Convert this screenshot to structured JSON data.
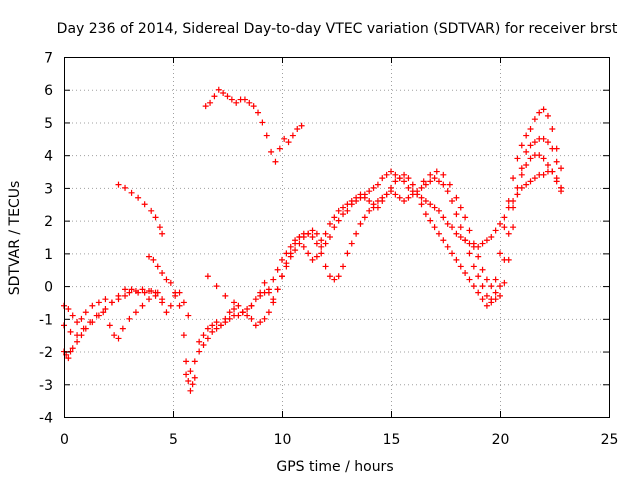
{
  "chart_data": {
    "type": "scatter",
    "title": "Day 236 of 2014, Sidereal Day-to-day VTEC variation (SDTVAR) for receiver brst",
    "xlabel": "GPS time / hours",
    "ylabel": "SDTVAR / TECUs",
    "xlim": [
      0,
      25
    ],
    "ylim": [
      -4,
      7
    ],
    "xticks": [
      0,
      5,
      10,
      15,
      20,
      25
    ],
    "yticks": [
      -4,
      -3,
      -2,
      -1,
      0,
      1,
      2,
      3,
      4,
      5,
      6,
      7
    ],
    "grid": true,
    "legend": "none",
    "marker": "plus",
    "color": "#ff0000",
    "series": [
      {
        "x": [
          0.0,
          0.1,
          0.2,
          0.3,
          0.4,
          0.6,
          0.8,
          1.0,
          1.3,
          1.6,
          1.9,
          2.2,
          2.5,
          2.8,
          3.0,
          3.3,
          3.6,
          3.9,
          4.2,
          4.5,
          4.7,
          4.9,
          5.1,
          5.3,
          5.5,
          5.7
        ],
        "y": [
          -2.0,
          -2.1,
          -2.2,
          -2.0,
          -1.9,
          -1.7,
          -1.5,
          -1.3,
          -1.1,
          -0.9,
          -0.7,
          -0.5,
          -0.4,
          -0.3,
          -0.2,
          -0.15,
          -0.1,
          -0.15,
          -0.2,
          -0.4,
          -0.8,
          -0.6,
          -0.3,
          -0.2,
          -0.5,
          -0.9
        ]
      },
      {
        "x": [
          0.0,
          0.2,
          0.4,
          0.6,
          0.8,
          1.0,
          1.3,
          1.6,
          1.9,
          2.2,
          2.5,
          2.8,
          3.1,
          3.4,
          3.7,
          4.0,
          4.3,
          4.5
        ],
        "y": [
          -0.6,
          -0.7,
          -0.9,
          -1.1,
          -1.0,
          -0.8,
          -0.6,
          -0.5,
          -0.4,
          -0.5,
          -0.3,
          -0.1,
          -0.1,
          -0.2,
          -0.2,
          -0.15,
          -0.2,
          -0.5
        ]
      },
      {
        "x": [
          0.0,
          0.3,
          0.6,
          0.9,
          1.2,
          1.5,
          1.8,
          2.1,
          2.3,
          2.5,
          2.7,
          3.0,
          3.3,
          3.6,
          3.9,
          4.2
        ],
        "y": [
          -1.2,
          -1.4,
          -1.5,
          -1.3,
          -1.1,
          -0.9,
          -0.8,
          -1.2,
          -1.5,
          -1.6,
          -1.3,
          -1.0,
          -0.8,
          -0.6,
          -0.4,
          -0.3
        ]
      },
      {
        "x": [
          2.5,
          2.8,
          3.1,
          3.4,
          3.7,
          4.0,
          4.2,
          4.4,
          4.5
        ],
        "y": [
          3.1,
          3.0,
          2.85,
          2.7,
          2.5,
          2.3,
          2.1,
          1.8,
          1.6
        ]
      },
      {
        "x": [
          3.9,
          4.1,
          4.3,
          4.5,
          4.7,
          4.9,
          5.1,
          5.3,
          5.5,
          5.6,
          5.7,
          5.8,
          5.9,
          6.0
        ],
        "y": [
          0.9,
          0.8,
          0.6,
          0.4,
          0.2,
          0.1,
          -0.2,
          -0.6,
          -1.5,
          -2.3,
          -2.9,
          -3.2,
          -3.0,
          -2.8
        ]
      },
      {
        "x": [
          5.6,
          5.8,
          6.0,
          6.2,
          6.4,
          6.6,
          6.8,
          7.0,
          7.2,
          7.4,
          7.6,
          7.8,
          8.0,
          8.2,
          8.4,
          8.6,
          8.8,
          9.0,
          9.2,
          9.4,
          9.6,
          9.8,
          10.0,
          10.2,
          10.4,
          10.6,
          10.8,
          11.0,
          11.2,
          11.4,
          11.6,
          11.8,
          12.0,
          12.2,
          12.4,
          12.6,
          12.8,
          13.0,
          13.2,
          13.4,
          13.6,
          13.8,
          14.0,
          14.2,
          14.4,
          14.6,
          14.8,
          15.0,
          15.2,
          15.4,
          15.6,
          15.8,
          16.0,
          16.2,
          16.4,
          16.6,
          16.8,
          17.0,
          17.2,
          17.4,
          17.6,
          17.8,
          18.0,
          18.2,
          18.4,
          18.6,
          18.8,
          19.0,
          19.2,
          19.4,
          19.6,
          19.8,
          20.0,
          20.2,
          20.4,
          20.6,
          20.8,
          21.0,
          21.2,
          21.4,
          21.6,
          21.8,
          22.0,
          22.2,
          22.4,
          22.6,
          22.8
        ],
        "y": [
          -2.7,
          -2.6,
          -2.3,
          -2.0,
          -1.8,
          -1.6,
          -1.4,
          -1.3,
          -1.2,
          -1.1,
          -1.0,
          -0.9,
          -0.9,
          -0.8,
          -0.7,
          -0.6,
          -0.4,
          -0.3,
          -0.2,
          -0.1,
          0.2,
          0.5,
          0.8,
          1.0,
          1.2,
          1.4,
          1.5,
          1.5,
          1.6,
          1.7,
          1.6,
          1.4,
          1.3,
          1.5,
          1.8,
          2.0,
          2.2,
          2.3,
          2.5,
          2.6,
          2.7,
          2.8,
          2.9,
          3.0,
          3.1,
          3.3,
          3.4,
          3.5,
          3.4,
          3.3,
          3.2,
          3.0,
          2.9,
          2.8,
          2.7,
          2.6,
          2.5,
          2.4,
          2.3,
          2.1,
          1.9,
          1.8,
          1.6,
          1.5,
          1.4,
          1.3,
          1.2,
          1.2,
          1.3,
          1.4,
          1.5,
          1.7,
          1.9,
          2.1,
          2.4,
          2.6,
          2.8,
          3.0,
          3.1,
          3.2,
          3.3,
          3.4,
          3.4,
          3.5,
          3.5,
          3.3,
          3.0
        ]
      },
      {
        "x": [
          6.2,
          6.4,
          6.6,
          6.8,
          7.0,
          7.2,
          7.4,
          7.6,
          7.8,
          8.0,
          8.2,
          8.4,
          8.6,
          8.8,
          9.0,
          9.2,
          9.4,
          9.6,
          9.8,
          10.0,
          10.2,
          10.4,
          10.6,
          10.8,
          11.0,
          11.2,
          11.4,
          11.6,
          11.8,
          12.0,
          12.2,
          12.4,
          12.6,
          12.8,
          13.0,
          13.2,
          13.4,
          13.6,
          13.8,
          14.0,
          14.2,
          14.4,
          14.6,
          14.8,
          15.0,
          15.2,
          15.4,
          15.6,
          15.8,
          16.0,
          16.2,
          16.4,
          16.6,
          16.8,
          17.0,
          17.2,
          17.4,
          17.6,
          17.8,
          18.0,
          18.2,
          18.4,
          18.6,
          18.8,
          19.0,
          19.2,
          19.4,
          19.6,
          19.8,
          20.0,
          20.2,
          20.4,
          20.6,
          20.8,
          21.0,
          21.2,
          21.4,
          21.6,
          21.8,
          22.0,
          22.2,
          22.4,
          22.6,
          22.8
        ],
        "y": [
          -1.7,
          -1.5,
          -1.3,
          -1.2,
          -1.1,
          -1.2,
          -1.0,
          -0.8,
          -0.7,
          -0.6,
          -0.8,
          -0.9,
          -1.0,
          -1.2,
          -1.1,
          -1.0,
          -0.8,
          -0.5,
          -0.1,
          0.3,
          0.7,
          1.0,
          1.3,
          1.5,
          1.6,
          1.6,
          1.5,
          1.3,
          1.0,
          0.6,
          0.3,
          0.2,
          0.3,
          0.6,
          1.0,
          1.3,
          1.6,
          1.9,
          2.1,
          2.3,
          2.4,
          2.6,
          2.7,
          2.8,
          2.9,
          2.8,
          2.7,
          2.6,
          2.7,
          2.8,
          2.9,
          3.0,
          3.1,
          3.2,
          3.3,
          3.2,
          3.1,
          2.9,
          2.6,
          2.2,
          1.8,
          1.4,
          1.0,
          0.6,
          0.3,
          0.0,
          -0.3,
          -0.5,
          -0.4,
          0.0,
          0.8,
          1.6,
          2.4,
          3.0,
          3.4,
          3.7,
          3.9,
          4.0,
          4.0,
          3.9,
          3.7,
          3.5,
          3.2,
          2.9
        ]
      },
      {
        "x": [
          6.6,
          7.0,
          7.4,
          7.8,
          8.2,
          8.6,
          9.0,
          9.2,
          9.4,
          9.6,
          9.8,
          10.0,
          10.2,
          10.4,
          10.6,
          10.8,
          11.0,
          11.2,
          11.4,
          11.6,
          11.8,
          12.0,
          12.2,
          12.4,
          12.6,
          12.8,
          13.0,
          13.2,
          13.4,
          13.6,
          13.8,
          14.0,
          14.2,
          14.4,
          14.6,
          14.8,
          15.0,
          15.2,
          15.4,
          15.6,
          15.8,
          16.0,
          16.2,
          16.4,
          16.6,
          16.8,
          17.0,
          17.2,
          17.4,
          17.6,
          17.8,
          18.0,
          18.2,
          18.4,
          18.6,
          18.8,
          19.0,
          19.2,
          19.4,
          19.6,
          19.8,
          20.0,
          20.2,
          20.4,
          20.6,
          20.8,
          21.0,
          21.2,
          21.4,
          21.6,
          21.8,
          22.0,
          22.2,
          22.4,
          22.6,
          22.8
        ],
        "y": [
          0.3,
          0.0,
          -0.3,
          -0.5,
          -0.8,
          -0.6,
          -0.2,
          0.1,
          -0.2,
          -0.4,
          -0.1,
          0.3,
          0.6,
          0.9,
          1.1,
          1.3,
          1.2,
          1.0,
          0.8,
          0.9,
          1.2,
          1.6,
          1.9,
          2.1,
          2.3,
          2.4,
          2.5,
          2.6,
          2.7,
          2.8,
          2.7,
          2.6,
          2.5,
          2.4,
          2.6,
          2.8,
          3.0,
          3.2,
          3.3,
          3.4,
          3.3,
          3.1,
          2.8,
          2.5,
          2.2,
          2.0,
          1.8,
          1.6,
          1.4,
          1.2,
          1.0,
          0.8,
          0.6,
          0.4,
          0.2,
          0.0,
          -0.2,
          -0.4,
          -0.6,
          -0.4,
          0.2,
          1.0,
          1.8,
          2.6,
          3.3,
          3.9,
          4.3,
          4.6,
          4.8,
          5.1,
          5.3,
          5.4,
          5.2,
          4.8,
          4.2,
          3.6
        ]
      },
      {
        "x": [
          6.5,
          6.7,
          6.9,
          7.1,
          7.3,
          7.5,
          7.7,
          7.9,
          8.1,
          8.3,
          8.5,
          8.7,
          8.9,
          9.1,
          9.3,
          9.5,
          9.7,
          9.9,
          10.1,
          10.3,
          10.5,
          10.7,
          10.9
        ],
        "y": [
          5.5,
          5.6,
          5.8,
          6.0,
          5.9,
          5.8,
          5.7,
          5.6,
          5.7,
          5.7,
          5.6,
          5.5,
          5.3,
          5.0,
          4.6,
          4.1,
          3.8,
          4.2,
          4.5,
          4.4,
          4.6,
          4.8,
          4.9
        ]
      },
      {
        "x": [
          16.5,
          16.8,
          17.1,
          17.4,
          17.7,
          18.0,
          18.2,
          18.4,
          18.6,
          18.8,
          19.0,
          19.2,
          19.4,
          19.6,
          19.8,
          20.0,
          20.2,
          20.4,
          20.6,
          20.8,
          21.0,
          21.2,
          21.4,
          21.6,
          21.8,
          22.0,
          22.2,
          22.4,
          22.6,
          22.8
        ],
        "y": [
          3.2,
          3.4,
          3.5,
          3.4,
          3.1,
          2.7,
          2.4,
          2.1,
          1.7,
          1.3,
          0.9,
          0.5,
          0.2,
          0.0,
          -0.2,
          -0.3,
          0.1,
          0.8,
          1.8,
          2.8,
          3.6,
          4.1,
          4.3,
          4.4,
          4.5,
          4.5,
          4.4,
          4.2,
          3.8,
          3.0
        ]
      }
    ]
  }
}
